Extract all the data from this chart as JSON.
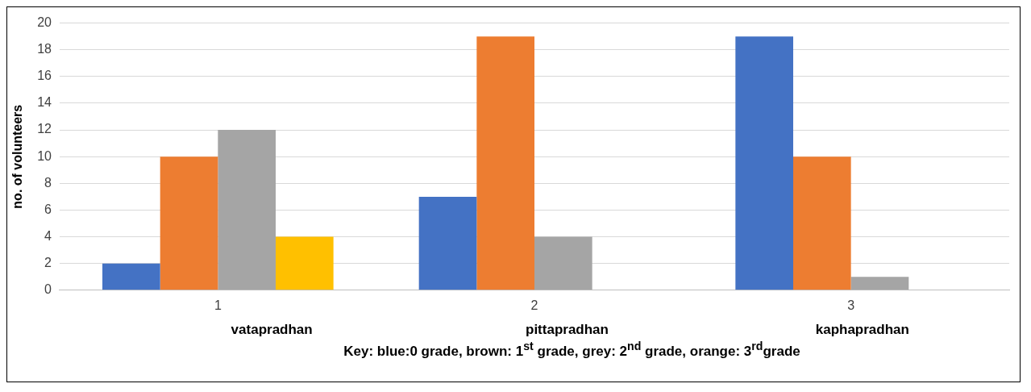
{
  "chart_data": {
    "type": "bar",
    "ylabel": "no. of volunteers",
    "categories": [
      "1",
      "2",
      "3"
    ],
    "series": [
      {
        "color": "#4472c4",
        "values": [
          2,
          7,
          19
        ]
      },
      {
        "color": "#ed7d31",
        "values": [
          10,
          19,
          10
        ]
      },
      {
        "color": "#a5a5a5",
        "values": [
          12,
          4,
          1
        ]
      },
      {
        "color": "#ffc000",
        "values": [
          4,
          null,
          null
        ]
      }
    ],
    "ylim": [
      0,
      20
    ],
    "yticks": [
      0,
      2,
      4,
      6,
      8,
      10,
      12,
      14,
      16,
      18,
      20
    ],
    "grid": "y",
    "legend": false,
    "annotations": [
      "vatapradhan",
      "pittapradhan",
      "kaphapradhan",
      "Key: blue:0 grade, brown: 1$^{st}$ grade, grey: 2$^{nd}$ grade, orange: 3$^{rd}$grade"
    ]
  }
}
